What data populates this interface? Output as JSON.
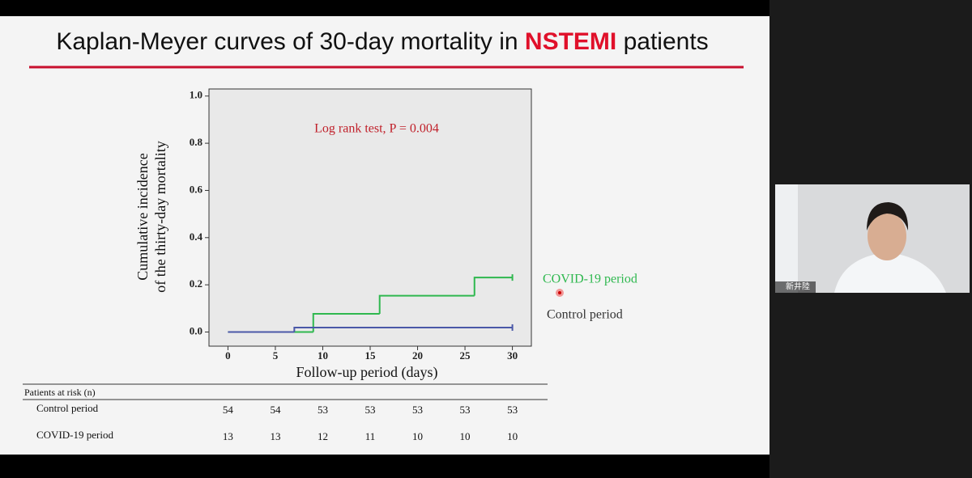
{
  "slide_title": {
    "before": "Kaplan-Meyer curves of 30-day mortality in ",
    "highlight": "NSTEMI",
    "after": " patients"
  },
  "chart_data": {
    "type": "step",
    "ylabel": [
      "Cumulative incidence",
      "of the thirty-day mortality"
    ],
    "xlabel": "Follow-up period (days)",
    "annotation": "Log rank test, P = 0.004",
    "xlim": [
      -2,
      32
    ],
    "xticks": [
      0,
      5,
      10,
      15,
      20,
      25,
      30
    ],
    "ylim": [
      -0.06,
      1.03
    ],
    "yticks": [
      {
        "value": 0,
        "label": "0.0"
      },
      {
        "value": 0.2,
        "label": "0.2"
      },
      {
        "value": 0.4,
        "label": "0.4"
      },
      {
        "value": 0.6,
        "label": "0.6"
      },
      {
        "value": 0.8,
        "label": "0.8"
      },
      {
        "value": 1,
        "label": "1.0"
      }
    ],
    "series": [
      {
        "name": "COVID-19 period",
        "color": "#2fb84f",
        "x": [
          0,
          9,
          16,
          26,
          30
        ],
        "values": [
          0,
          0.077,
          0.154,
          0.231,
          0.231
        ]
      },
      {
        "name": "Control period",
        "color": "#4a58a8",
        "x": [
          0,
          7,
          30
        ],
        "values": [
          0,
          0.019,
          0.019
        ]
      }
    ]
  },
  "risk_table": {
    "title": "Patients at risk (n)",
    "rows": [
      {
        "label": "Control period",
        "values": [
          "54",
          "54",
          "53",
          "53",
          "53",
          "53",
          "53"
        ]
      },
      {
        "label": "COVID-19 period",
        "values": [
          "13",
          "13",
          "12",
          "11",
          "10",
          "10",
          "10"
        ]
      }
    ]
  },
  "participant": {
    "name": "新井陸"
  }
}
